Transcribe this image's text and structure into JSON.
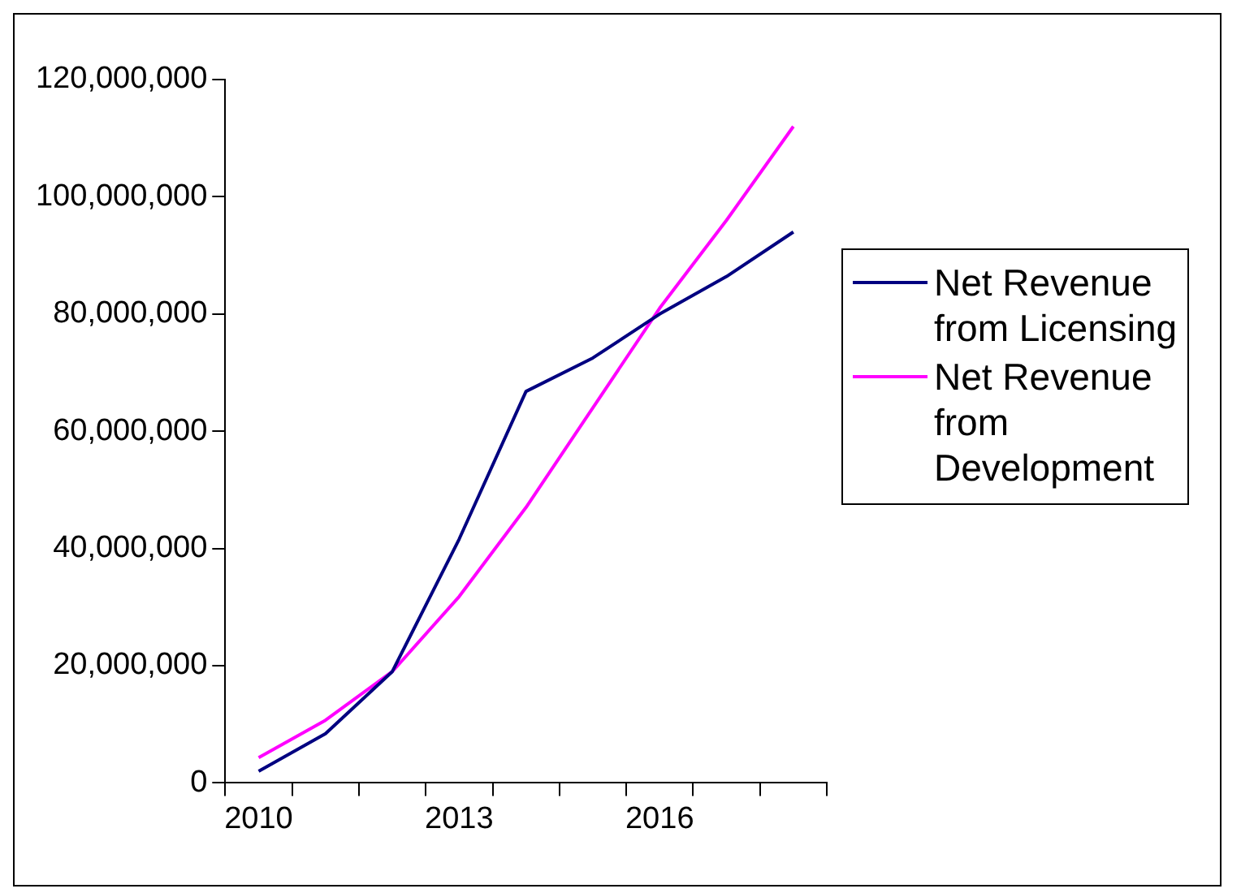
{
  "chart_data": {
    "type": "line",
    "categories": [
      "2010",
      null,
      null,
      "2013",
      null,
      null,
      "2016",
      null,
      null
    ],
    "series": [
      {
        "name": "Net Revenue from Licensing",
        "color": "#000080",
        "values": [
          2000000,
          8400000,
          19000000,
          41600000,
          66800000,
          72500000,
          80000000,
          86400000,
          94000000
        ]
      },
      {
        "name": "Net Revenue from Development",
        "color": "#ff00ff",
        "values": [
          4300000,
          10700000,
          19000000,
          31800000,
          47000000,
          64000000,
          81000000,
          96000000,
          112000000
        ]
      }
    ],
    "ylim": [
      0,
      120000000
    ],
    "yticks": [
      0,
      {
        "value": 20000000,
        "label": "20,000,000"
      },
      {
        "value": 40000000,
        "label": "40,000,000"
      },
      {
        "value": 60000000,
        "label": "60,000,000"
      },
      {
        "value": 80000000,
        "label": "80,000,000"
      },
      {
        "value": 100000000,
        "label": "100,000,000"
      },
      {
        "value": 120000000,
        "label": "120,000,000"
      }
    ],
    "legend": "right",
    "marker": "none"
  }
}
